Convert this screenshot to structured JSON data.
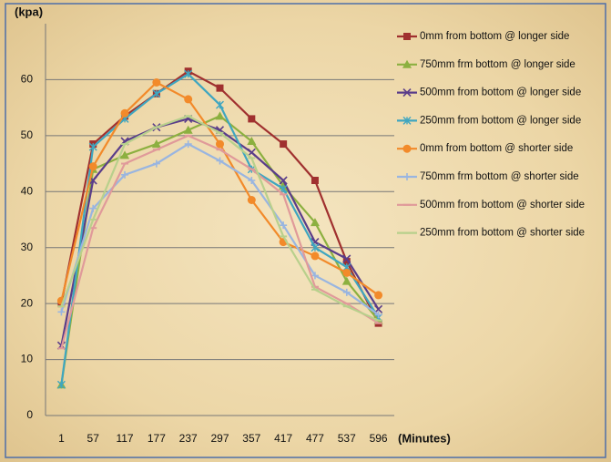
{
  "chart_data": {
    "type": "line",
    "y_label": "(kpa)",
    "x_label": "(Minutes)",
    "categories": [
      "1",
      "57",
      "117",
      "177",
      "237",
      "297",
      "357",
      "417",
      "477",
      "537",
      "596"
    ],
    "ylim": [
      0,
      70
    ],
    "yticks": [
      0,
      10,
      20,
      30,
      40,
      50,
      60
    ],
    "grid": true,
    "legend": "right",
    "series": [
      {
        "name": "0mm from bottom @ longer side",
        "color": "#a0302f",
        "marker": "square",
        "values": [
          20,
          48.5,
          53.5,
          57.5,
          61.5,
          58.5,
          53,
          48.5,
          42,
          27.5,
          16.5
        ]
      },
      {
        "name": "750mm frm bottom @ longer side",
        "color": "#8cb040",
        "marker": "triangle",
        "values": [
          5.5,
          44,
          46.5,
          48.5,
          51,
          53.5,
          49,
          41,
          34.5,
          24,
          17
        ]
      },
      {
        "name": "500mm from bottom @ longer side",
        "color": "#5a3d8a",
        "marker": "x",
        "values": [
          12.5,
          42,
          49,
          51.5,
          53,
          51,
          47,
          42,
          31,
          28,
          19
        ]
      },
      {
        "name": "250mm from bottom @ longer side",
        "color": "#3fa6c0",
        "marker": "star",
        "values": [
          5.5,
          48,
          53,
          57.5,
          61,
          55.5,
          44,
          40.5,
          30,
          26.5,
          17.5
        ]
      },
      {
        "name": "0mm from bottom @ shorter side",
        "color": "#f28a2a",
        "marker": "circle",
        "values": [
          20.5,
          44.5,
          54,
          59.5,
          56.5,
          48.5,
          38.5,
          31,
          28.5,
          25.5,
          21.5
        ]
      },
      {
        "name": "750mm frm bottom @ shorter side",
        "color": "#99b5e0",
        "marker": "plus",
        "values": [
          18.5,
          37,
          43,
          45,
          48.5,
          45.5,
          42,
          34,
          25,
          22,
          18
        ]
      },
      {
        "name": "500mm from bottom @ shorter side",
        "color": "#e09a9a",
        "marker": "dash",
        "values": [
          12,
          33.5,
          45,
          47.5,
          50,
          47.5,
          44,
          39.5,
          23,
          20,
          16.5
        ]
      },
      {
        "name": "250mm from bottom @ shorter side",
        "color": "#b8d08c",
        "marker": "dash",
        "values": [
          19.5,
          35,
          48.5,
          51.5,
          53.5,
          50.5,
          46,
          32,
          22.5,
          19.5,
          17
        ]
      }
    ]
  }
}
